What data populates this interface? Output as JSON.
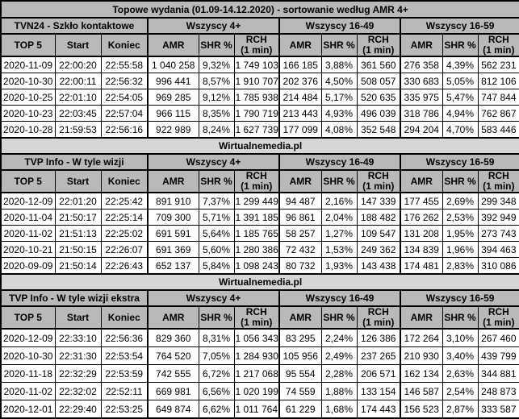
{
  "title": "Topowe wydania (01.09-14.12.2020) - sortowanie według AMR 4+",
  "source_label": "Wirtualnemedia.pl",
  "groups": [
    "Wszyscy 4+",
    "Wszyscy 16-49",
    "Wszyscy 16-59"
  ],
  "column_headers": {
    "top5": "TOP 5",
    "start": "Start",
    "koniec": "Koniec",
    "amr": "AMR",
    "shr": "SHR %",
    "rch": "RCH\n(1 min)"
  },
  "colors": {
    "header_bg": "#b9b9b9",
    "source_bg": "#d6d6d6",
    "row_bg": "#ffffff",
    "border": "#000000"
  },
  "sections": [
    {
      "name": "TVN24 - Szkło kontaktowe",
      "source_row": true,
      "rows": [
        [
          "2020-11-09",
          "22:00:20",
          "22:55:58",
          "1 040 258",
          "9,32%",
          "1 749 103",
          "166 185",
          "3,88%",
          "361 560",
          "276 358",
          "4,39%",
          "562 231"
        ],
        [
          "2020-10-30",
          "22:00:11",
          "22:56:32",
          "996 441",
          "8,57%",
          "1 910 707",
          "202 376",
          "4,50%",
          "508 057",
          "330 683",
          "5,05%",
          "812 106"
        ],
        [
          "2020-10-25",
          "22:01:10",
          "22:54:05",
          "969 285",
          "9,12%",
          "1 785 938",
          "214 484",
          "5,17%",
          "520 635",
          "335 975",
          "5,47%",
          "747 844"
        ],
        [
          "2020-10-23",
          "22:03:45",
          "22:57:04",
          "966 115",
          "8,35%",
          "1 790 719",
          "213 443",
          "4,93%",
          "496 039",
          "318 786",
          "4,94%",
          "762 867"
        ],
        [
          "2020-10-28",
          "21:59:53",
          "22:56:16",
          "922 989",
          "8,24%",
          "1 627 739",
          "177 099",
          "4,08%",
          "352 548",
          "294 204",
          "4,70%",
          "583 446"
        ]
      ]
    },
    {
      "name": "TVP Info - W tyle wizji",
      "source_row": true,
      "rows": [
        [
          "2020-12-09",
          "22:01:20",
          "22:25:42",
          "891 910",
          "7,37%",
          "1 299 449",
          "94 487",
          "2,16%",
          "147 339",
          "177 455",
          "2,69%",
          "299 348"
        ],
        [
          "2020-11-04",
          "21:50:17",
          "22:25:14",
          "709 300",
          "5,71%",
          "1 391 185",
          "96 861",
          "2,04%",
          "188 482",
          "176 262",
          "2,53%",
          "392 949"
        ],
        [
          "2020-11-02",
          "21:51:13",
          "22:25:02",
          "691 591",
          "5,64%",
          "1 185 765",
          "58 257",
          "1,27%",
          "109 547",
          "131 208",
          "1,95%",
          "273 743"
        ],
        [
          "2020-10-21",
          "21:50:15",
          "22:26:07",
          "691 369",
          "5,60%",
          "1 280 386",
          "72 432",
          "1,53%",
          "249 362",
          "134 839",
          "1,96%",
          "394 463"
        ],
        [
          "2020-09-09",
          "21:50:14",
          "22:26:43",
          "652 137",
          "5,84%",
          "1 098 243",
          "80 732",
          "1,93%",
          "143 438",
          "174 481",
          "2,83%",
          "310 086"
        ]
      ]
    },
    {
      "name": "TVP Info - W tyle wizji ekstra",
      "source_row": false,
      "rows": [
        [
          "2020-12-09",
          "22:33:10",
          "22:56:36",
          "829 360",
          "8,31%",
          "1 056 343",
          "83 295",
          "2,24%",
          "126 386",
          "172 264",
          "3,10%",
          "267 460"
        ],
        [
          "2020-10-30",
          "22:31:30",
          "22:53:54",
          "764 520",
          "7,05%",
          "1 284 930",
          "105 956",
          "2,49%",
          "237 265",
          "210 930",
          "3,40%",
          "439 799"
        ],
        [
          "2020-11-18",
          "22:32:29",
          "22:53:59",
          "742 555",
          "6,72%",
          "1 217 068",
          "95 554",
          "2,28%",
          "206 571",
          "162 134",
          "2,63%",
          "344 881"
        ],
        [
          "2020-11-02",
          "22:32:02",
          "22:52:11",
          "669 981",
          "6,56%",
          "1 020 199",
          "74 559",
          "1,88%",
          "133 154",
          "146 587",
          "2,54%",
          "248 873"
        ],
        [
          "2020-12-01",
          "22:29:40",
          "22:53:25",
          "649 874",
          "6,62%",
          "1 011 764",
          "61 229",
          "1,68%",
          "174 443",
          "156 523",
          "2,87%",
          "333 587"
        ]
      ]
    }
  ]
}
